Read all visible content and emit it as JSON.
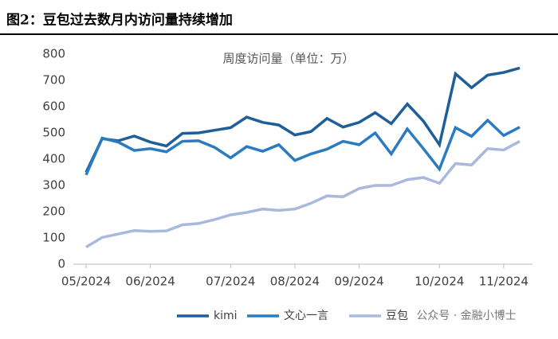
{
  "title": "图2：豆包过去数月内访问量持续增加",
  "watermark": "公众号 · 金融小博士",
  "chart_data": {
    "type": "line",
    "title": "周度访问量（单位：万）",
    "categories": [
      "05/2024",
      null,
      null,
      null,
      "06/2024",
      null,
      null,
      null,
      null,
      "07/2024",
      null,
      null,
      null,
      "08/2024",
      null,
      null,
      null,
      "09/2024",
      null,
      null,
      null,
      null,
      "10/2024",
      null,
      null,
      null,
      "11/2024",
      null
    ],
    "series": [
      {
        "name": "kimi",
        "color": "#1f5f99",
        "values": [
          350,
          478,
          470,
          488,
          465,
          450,
          498,
          500,
          510,
          520,
          560,
          540,
          530,
          492,
          505,
          555,
          522,
          540,
          577,
          535,
          610,
          545,
          455,
          725,
          672,
          720,
          730,
          747
        ]
      },
      {
        "name": "文心一言",
        "color": "#2b7bc0",
        "values": [
          340,
          480,
          465,
          433,
          440,
          428,
          468,
          470,
          445,
          405,
          448,
          430,
          455,
          395,
          420,
          438,
          468,
          455,
          500,
          420,
          515,
          440,
          362,
          520,
          487,
          548,
          490,
          522
        ]
      },
      {
        "name": "豆包",
        "color": "#a9b9dd",
        "values": [
          65,
          102,
          115,
          128,
          125,
          127,
          150,
          155,
          170,
          188,
          197,
          210,
          205,
          210,
          232,
          260,
          257,
          288,
          300,
          300,
          322,
          330,
          308,
          383,
          378,
          440,
          435,
          468
        ]
      }
    ],
    "ylim": [
      0,
      800
    ],
    "yticks": [
      0,
      100,
      200,
      300,
      400,
      500,
      600,
      700,
      800
    ],
    "grid": false,
    "legend": "bottom"
  }
}
